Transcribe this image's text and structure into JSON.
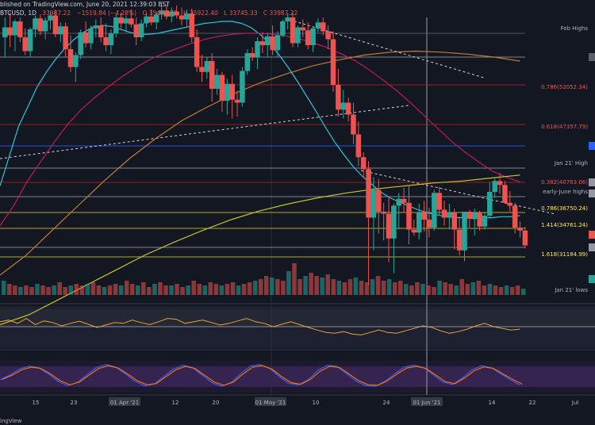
{
  "header": {
    "published": "blished on TradingView.com, June 20, 2021 12:39:03 BST",
    "symbol": "BTCUSD, 1D",
    "last": "33987.22",
    "change": "−1519.84 (−4.28%)",
    "open": "O 35494.70",
    "high": "H 35922.40",
    "low": "L 33745.33",
    "close": "C 33987.22"
  },
  "footer": {
    "brand": "ingView"
  },
  "chart_data": {
    "type": "candlestick",
    "symbol": "BTCUSD",
    "interval": "1D",
    "y_range": [
      29000,
      57000
    ],
    "candles": [
      {
        "o": 55000,
        "h": 57000,
        "l": 53000,
        "c": 56000
      },
      {
        "o": 56000,
        "h": 57500,
        "l": 54000,
        "c": 55200
      },
      {
        "o": 55200,
        "h": 56800,
        "l": 53600,
        "c": 56600
      },
      {
        "o": 56600,
        "h": 57000,
        "l": 54500,
        "c": 55000
      },
      {
        "o": 55000,
        "h": 55900,
        "l": 53200,
        "c": 53600
      },
      {
        "o": 53600,
        "h": 56000,
        "l": 53000,
        "c": 55800
      },
      {
        "o": 55800,
        "h": 57200,
        "l": 55000,
        "c": 56900
      },
      {
        "o": 56900,
        "h": 57300,
        "l": 55200,
        "c": 55600
      },
      {
        "o": 55600,
        "h": 57000,
        "l": 54800,
        "c": 56700
      },
      {
        "o": 56700,
        "h": 57600,
        "l": 55800,
        "c": 57200
      },
      {
        "o": 57200,
        "h": 57800,
        "l": 55000,
        "c": 55300
      },
      {
        "o": 55300,
        "h": 56500,
        "l": 54500,
        "c": 56100
      },
      {
        "o": 56100,
        "h": 56500,
        "l": 53000,
        "c": 53800
      },
      {
        "o": 53800,
        "h": 55200,
        "l": 51500,
        "c": 52000
      },
      {
        "o": 52000,
        "h": 53500,
        "l": 50500,
        "c": 53200
      },
      {
        "o": 53200,
        "h": 55800,
        "l": 52800,
        "c": 55500
      },
      {
        "o": 55500,
        "h": 56600,
        "l": 54000,
        "c": 54400
      },
      {
        "o": 54400,
        "h": 56200,
        "l": 53800,
        "c": 55900
      },
      {
        "o": 55900,
        "h": 56800,
        "l": 55000,
        "c": 56200
      },
      {
        "o": 56200,
        "h": 57000,
        "l": 54500,
        "c": 55000
      },
      {
        "o": 55000,
        "h": 56400,
        "l": 53600,
        "c": 54200
      },
      {
        "o": 54200,
        "h": 55800,
        "l": 53300,
        "c": 55400
      },
      {
        "o": 55400,
        "h": 57400,
        "l": 55000,
        "c": 57000
      },
      {
        "o": 57000,
        "h": 57500,
        "l": 55900,
        "c": 56400
      },
      {
        "o": 56400,
        "h": 57200,
        "l": 55500,
        "c": 56900
      },
      {
        "o": 56900,
        "h": 57800,
        "l": 56000,
        "c": 56300
      },
      {
        "o": 56300,
        "h": 57000,
        "l": 54200,
        "c": 55000
      },
      {
        "o": 55000,
        "h": 56800,
        "l": 54600,
        "c": 56400
      },
      {
        "o": 56400,
        "h": 57400,
        "l": 56000,
        "c": 57100
      },
      {
        "o": 57100,
        "h": 57800,
        "l": 56200,
        "c": 56500
      },
      {
        "o": 56500,
        "h": 57600,
        "l": 55800,
        "c": 57300
      },
      {
        "o": 57300,
        "h": 58200,
        "l": 56800,
        "c": 57700
      },
      {
        "o": 57700,
        "h": 58300,
        "l": 56800,
        "c": 57100
      },
      {
        "o": 57100,
        "h": 58000,
        "l": 56500,
        "c": 57600
      },
      {
        "o": 57600,
        "h": 58200,
        "l": 56900,
        "c": 57200
      },
      {
        "o": 57200,
        "h": 58000,
        "l": 56200,
        "c": 56800
      },
      {
        "o": 56800,
        "h": 57800,
        "l": 56000,
        "c": 57400
      },
      {
        "o": 57400,
        "h": 57900,
        "l": 54500,
        "c": 55000
      },
      {
        "o": 55000,
        "h": 55800,
        "l": 51500,
        "c": 52000
      },
      {
        "o": 52000,
        "h": 53200,
        "l": 50500,
        "c": 51500
      },
      {
        "o": 51500,
        "h": 53000,
        "l": 50800,
        "c": 52600
      },
      {
        "o": 52600,
        "h": 53400,
        "l": 48500,
        "c": 49800
      },
      {
        "o": 49800,
        "h": 51800,
        "l": 49200,
        "c": 51200
      },
      {
        "o": 51200,
        "h": 51500,
        "l": 47500,
        "c": 48600
      },
      {
        "o": 48600,
        "h": 50800,
        "l": 47200,
        "c": 50300
      },
      {
        "o": 50300,
        "h": 51200,
        "l": 46800,
        "c": 48700
      },
      {
        "o": 48700,
        "h": 49600,
        "l": 47000,
        "c": 48400
      },
      {
        "o": 48400,
        "h": 52000,
        "l": 48000,
        "c": 51600
      },
      {
        "o": 51600,
        "h": 53800,
        "l": 51200,
        "c": 53400
      },
      {
        "o": 53400,
        "h": 54000,
        "l": 52600,
        "c": 53000
      },
      {
        "o": 53000,
        "h": 55000,
        "l": 51800,
        "c": 54600
      },
      {
        "o": 54600,
        "h": 55500,
        "l": 53400,
        "c": 54200
      },
      {
        "o": 54200,
        "h": 55400,
        "l": 53000,
        "c": 55100
      },
      {
        "o": 55100,
        "h": 56200,
        "l": 53200,
        "c": 53700
      },
      {
        "o": 53700,
        "h": 55600,
        "l": 53000,
        "c": 55200
      },
      {
        "o": 55200,
        "h": 56800,
        "l": 55000,
        "c": 56600
      },
      {
        "o": 56600,
        "h": 57400,
        "l": 55800,
        "c": 57000
      },
      {
        "o": 57000,
        "h": 57600,
        "l": 54000,
        "c": 54400
      },
      {
        "o": 54400,
        "h": 56200,
        "l": 54000,
        "c": 56000
      },
      {
        "o": 56000,
        "h": 56800,
        "l": 55000,
        "c": 55700
      },
      {
        "o": 55700,
        "h": 56500,
        "l": 53800,
        "c": 54200
      },
      {
        "o": 54200,
        "h": 56000,
        "l": 53500,
        "c": 55900
      },
      {
        "o": 55900,
        "h": 56900,
        "l": 55500,
        "c": 56500
      },
      {
        "o": 56500,
        "h": 57000,
        "l": 55200,
        "c": 55600
      },
      {
        "o": 55600,
        "h": 56200,
        "l": 53800,
        "c": 54800
      },
      {
        "o": 54800,
        "h": 55600,
        "l": 49500,
        "c": 50200
      },
      {
        "o": 50200,
        "h": 51800,
        "l": 47000,
        "c": 47700
      },
      {
        "o": 47700,
        "h": 49700,
        "l": 46800,
        "c": 48400
      },
      {
        "o": 48400,
        "h": 48900,
        "l": 46500,
        "c": 47200
      },
      {
        "o": 47200,
        "h": 48400,
        "l": 44200,
        "c": 45200
      },
      {
        "o": 45200,
        "h": 46500,
        "l": 42000,
        "c": 42900
      },
      {
        "o": 42900,
        "h": 43400,
        "l": 40800,
        "c": 41700
      },
      {
        "o": 41700,
        "h": 42500,
        "l": 30000,
        "c": 36800
      },
      {
        "o": 36800,
        "h": 40900,
        "l": 33500,
        "c": 39600
      },
      {
        "o": 39600,
        "h": 40700,
        "l": 35200,
        "c": 37400
      },
      {
        "o": 37400,
        "h": 38300,
        "l": 34500,
        "c": 37200
      },
      {
        "o": 37200,
        "h": 38900,
        "l": 32300,
        "c": 34700
      },
      {
        "o": 34700,
        "h": 38200,
        "l": 31200,
        "c": 38000
      },
      {
        "o": 38000,
        "h": 39300,
        "l": 35600,
        "c": 38700
      },
      {
        "o": 38700,
        "h": 39800,
        "l": 37300,
        "c": 38300
      },
      {
        "o": 38300,
        "h": 40100,
        "l": 34100,
        "c": 35600
      },
      {
        "o": 35600,
        "h": 36600,
        "l": 35000,
        "c": 35300
      },
      {
        "o": 35300,
        "h": 38200,
        "l": 34600,
        "c": 37300
      },
      {
        "o": 37300,
        "h": 38500,
        "l": 35400,
        "c": 36600
      },
      {
        "o": 36600,
        "h": 37800,
        "l": 34800,
        "c": 35800
      },
      {
        "o": 35800,
        "h": 39600,
        "l": 35500,
        "c": 39300
      },
      {
        "o": 39300,
        "h": 39900,
        "l": 37000,
        "c": 37600
      },
      {
        "o": 37600,
        "h": 38500,
        "l": 36000,
        "c": 36800
      },
      {
        "o": 36800,
        "h": 38200,
        "l": 35600,
        "c": 37300
      },
      {
        "o": 37300,
        "h": 37700,
        "l": 33600,
        "c": 35600
      },
      {
        "o": 35600,
        "h": 36900,
        "l": 33000,
        "c": 33500
      },
      {
        "o": 33500,
        "h": 37400,
        "l": 32400,
        "c": 37400
      },
      {
        "o": 37400,
        "h": 37600,
        "l": 35800,
        "c": 36700
      },
      {
        "o": 36700,
        "h": 37700,
        "l": 35000,
        "c": 37300
      },
      {
        "o": 37300,
        "h": 37500,
        "l": 35500,
        "c": 35900
      },
      {
        "o": 35900,
        "h": 37400,
        "l": 35600,
        "c": 37000
      },
      {
        "o": 37000,
        "h": 40400,
        "l": 36700,
        "c": 39400
      },
      {
        "o": 39400,
        "h": 40900,
        "l": 38800,
        "c": 40500
      },
      {
        "o": 40500,
        "h": 41300,
        "l": 39200,
        "c": 40100
      },
      {
        "o": 40100,
        "h": 40500,
        "l": 38200,
        "c": 38300
      },
      {
        "o": 38300,
        "h": 39500,
        "l": 37400,
        "c": 38000
      },
      {
        "o": 38000,
        "h": 38300,
        "l": 35200,
        "c": 35800
      },
      {
        "o": 35800,
        "h": 36400,
        "l": 34800,
        "c": 35500
      },
      {
        "o": 35500,
        "h": 35900,
        "l": 33700,
        "c": 34000
      }
    ],
    "moving_averages": [
      {
        "name": "MA short",
        "color": "#26c6da",
        "values": [
          40,
          43,
          46,
          48,
          50,
          51.5,
          52.8,
          53.9,
          54.8,
          55.5,
          56,
          56.2,
          56.1,
          55.8,
          55.5,
          55.3,
          55.3,
          55.4,
          55.6,
          55.8,
          56,
          56.2,
          56.4,
          56.5,
          56.6,
          56.6,
          56.4,
          56,
          55.3,
          54.4,
          53.3,
          52,
          50.6,
          49.1,
          47.6,
          46,
          44.5,
          43.2,
          42,
          41,
          40.2,
          39.4,
          38.8,
          38.4,
          38,
          37.6,
          37.3,
          37.1,
          36.9,
          36.8,
          36.8,
          36.7,
          36.8,
          36.8,
          36.9,
          36.9,
          37
        ]
      },
      {
        "name": "MA mid",
        "color": "#c2185b",
        "values": [
          36,
          38,
          40.5,
          42.5,
          44.5,
          46.3,
          47.8,
          49,
          50.1,
          51.1,
          52,
          52.8,
          53.4,
          53.9,
          54.4,
          54.8,
          55.1,
          55.3,
          55.4,
          55.4,
          55.3,
          55.1,
          54.8,
          54.4,
          53.9,
          53.3,
          52.6,
          51.7,
          50.7,
          49.6,
          48.4,
          47.1,
          45.8,
          44.5,
          43.4,
          42.4,
          41.5,
          40.9,
          40.4
        ]
      },
      {
        "name": "MA long",
        "color": "#c27c3a",
        "values": [
          31,
          33,
          35.5,
          38,
          40.5,
          42.8,
          44.8,
          46.6,
          48,
          49.3,
          50.4,
          51.3,
          52.1,
          52.7,
          53.2,
          53.5,
          53.6,
          53.5,
          53.3,
          53,
          52.6
        ]
      },
      {
        "name": "MA 200",
        "color": "#c8c42b",
        "values": [
          26,
          27,
          28.5,
          30,
          31.5,
          33,
          34.3,
          35.5,
          36.6,
          37.5,
          38.2,
          38.8,
          39.3,
          39.7,
          40,
          40.3,
          40.5,
          40.8,
          41.1
        ]
      }
    ],
    "levels": [
      {
        "value": 35000,
        "label": "",
        "color": "#b2b5be",
        "style": "solid"
      },
      {
        "value": 49600,
        "label": "",
        "color": "#787b86",
        "style": "solid"
      },
      {
        "value": 42900,
        "label": "",
        "color": "#787b86",
        "style": "solid"
      },
      {
        "value": 37700,
        "label": "",
        "color": "#b2b5be",
        "style": "solid"
      }
    ],
    "annotations": [
      {
        "text": "Feb Highs",
        "color": "#b2b5be"
      },
      {
        "text": "0.786(52052.34)",
        "color": "#ef5350"
      },
      {
        "text": "0.618(47357.79)",
        "color": "#ef5350"
      },
      {
        "text": "Jan 21' High",
        "color": "#b2b5be"
      },
      {
        "text": "0.382(40763.06)",
        "color": "#ef5350"
      },
      {
        "text": "early-June highs",
        "color": "#b2b5be"
      },
      {
        "text": "0.786(36750.24)",
        "color": "#ffeb3b"
      },
      {
        "text": "1.414(34761.24)",
        "color": "#ffeb3b"
      },
      {
        "text": "1.618(31184.99)",
        "color": "#ffeb3b"
      },
      {
        "text": "Jan 21' lows",
        "color": "#b2b5be"
      }
    ],
    "x_ticks": [
      "15",
      "23",
      "01 Apr '21",
      "12",
      "20",
      "01 May '21",
      "10",
      "24",
      "01 Jun '21",
      "14",
      "22",
      "Jul"
    ],
    "volume": [
      9,
      7,
      6,
      5,
      6,
      5,
      7,
      6,
      5,
      6,
      8,
      5,
      6,
      7,
      6,
      7,
      8,
      6,
      5,
      6,
      7,
      6,
      9,
      7,
      6,
      8,
      5,
      7,
      8,
      6,
      6,
      7,
      5,
      6,
      9,
      7,
      6,
      8,
      7,
      6,
      7,
      8,
      6,
      7,
      8,
      9,
      10,
      12,
      11,
      10,
      9,
      15,
      20,
      10,
      12,
      14,
      12,
      11,
      13,
      10,
      9,
      8,
      10,
      11,
      9,
      8,
      10,
      12,
      9,
      10,
      8,
      9,
      7,
      6,
      8,
      7,
      6,
      5,
      9,
      8,
      7,
      6,
      10,
      7,
      8,
      9,
      6,
      7,
      6,
      5,
      6,
      5,
      6,
      4
    ],
    "rsi": [
      62,
      66,
      58,
      70,
      55,
      64,
      60,
      52,
      58,
      63,
      56,
      48,
      54,
      60,
      58,
      66,
      60,
      55,
      62,
      70,
      68,
      58,
      62,
      66,
      60,
      54,
      58,
      64,
      70,
      62,
      58,
      50,
      56,
      62,
      55,
      48,
      42,
      36,
      34,
      38,
      32,
      30,
      36,
      42,
      36,
      34,
      40,
      46,
      52,
      48,
      40,
      34,
      38,
      44,
      52,
      58,
      50,
      46,
      42,
      44
    ],
    "stoch": [
      40,
      55,
      75,
      85,
      80,
      60,
      35,
      20,
      30,
      55,
      80,
      90,
      82,
      60,
      35,
      20,
      25,
      50,
      75,
      88,
      80,
      55,
      30,
      18,
      30,
      60,
      85,
      90,
      78,
      50,
      28,
      22,
      40,
      70,
      88,
      84,
      60,
      35,
      20,
      18,
      35,
      60,
      82,
      88,
      80,
      56,
      32,
      24,
      45,
      72,
      86,
      80,
      60,
      40,
      22
    ]
  }
}
